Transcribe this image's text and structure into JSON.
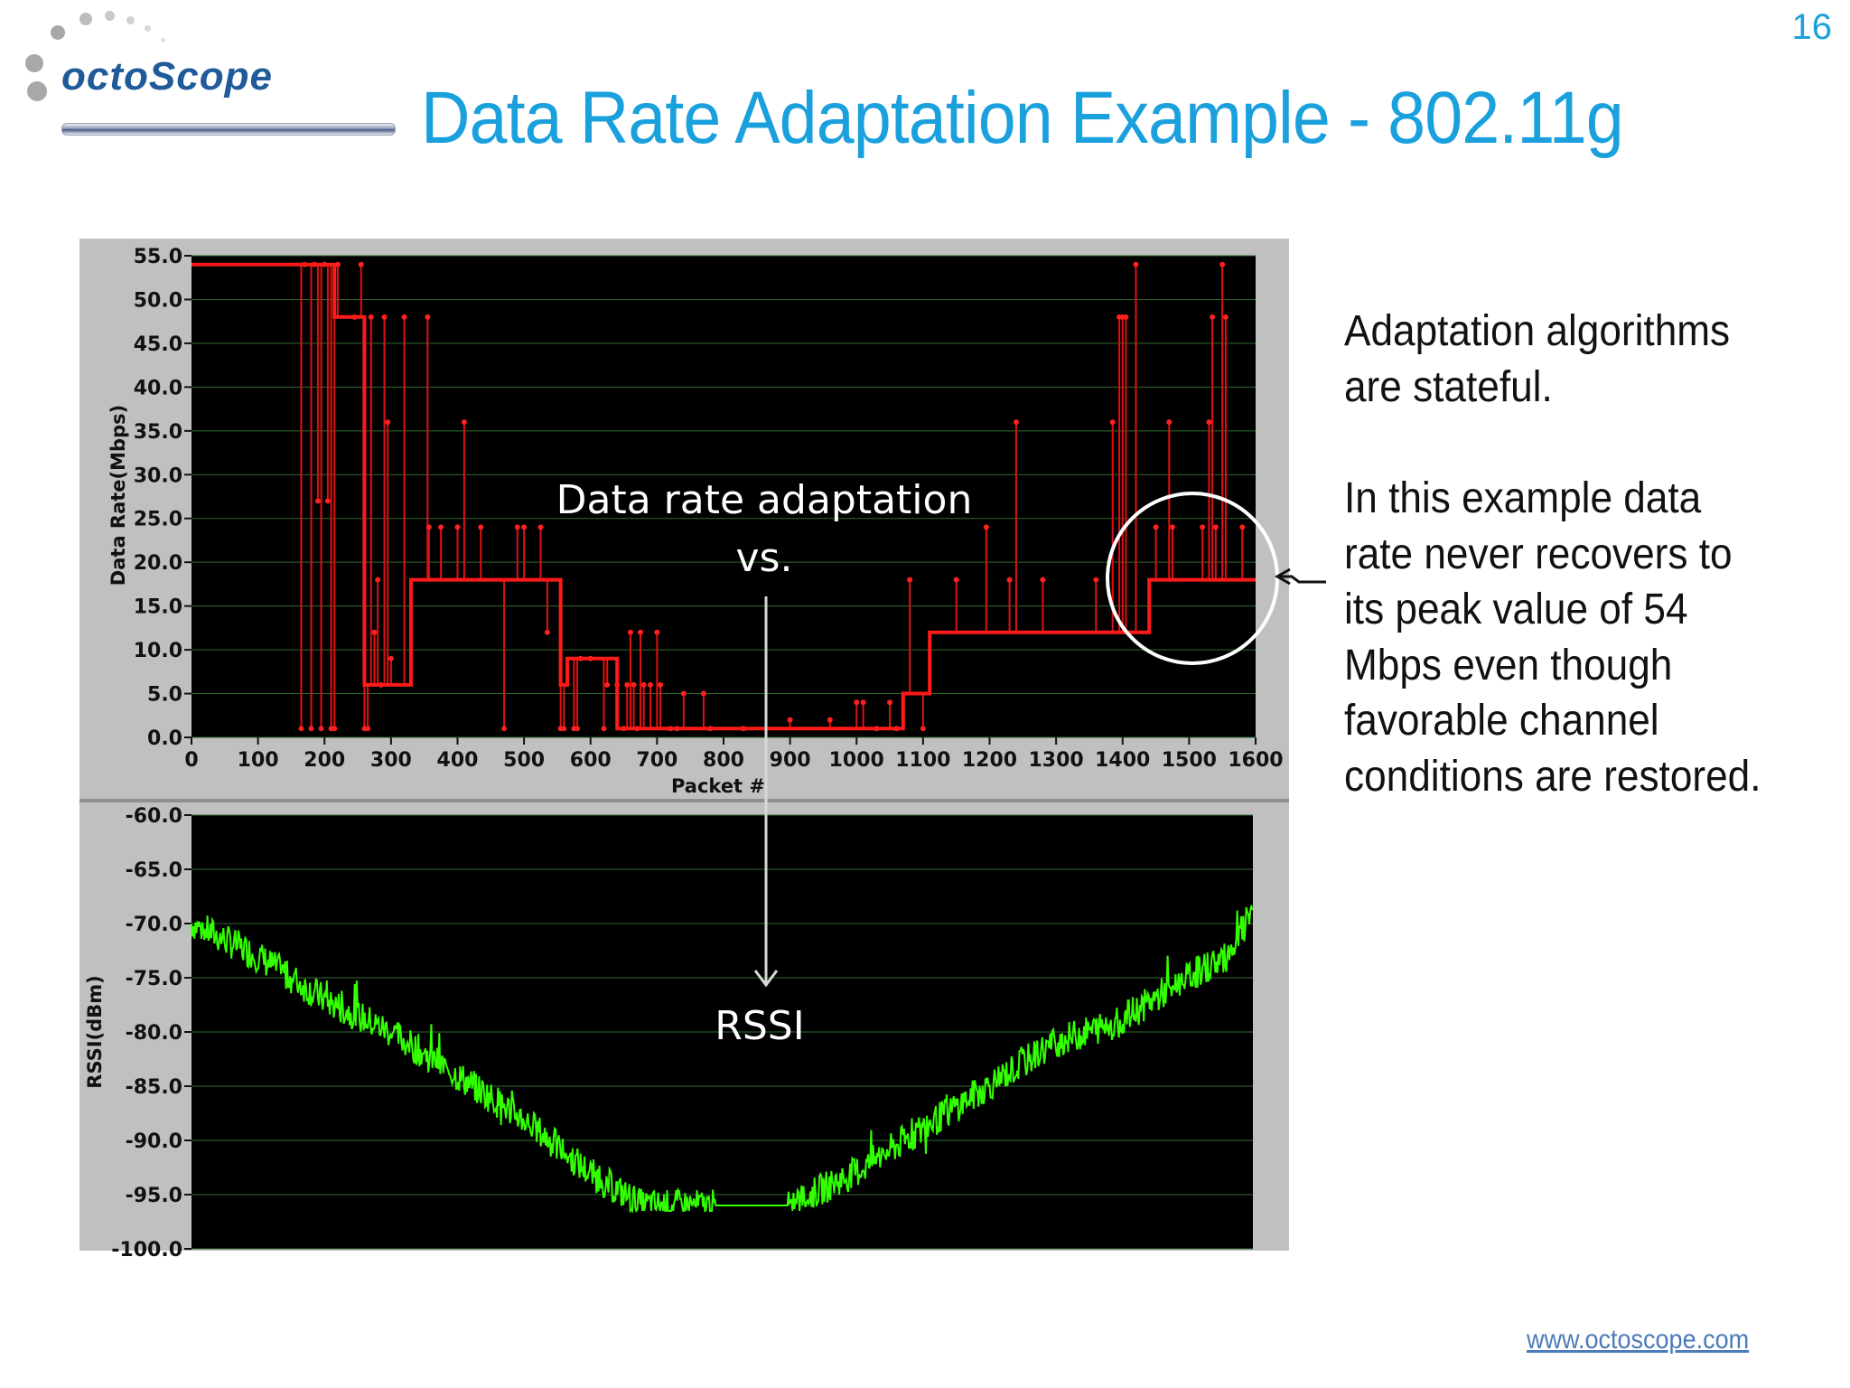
{
  "slide_number": "16",
  "logo": {
    "text": "octoScope"
  },
  "title": "Data Rate Adaptation Example - 802.11g",
  "side_text": {
    "paragraph1": "Adaptation algorithms are stateful.",
    "paragraph2": "In this example data rate never recovers to its peak value of 54 Mbps even though favorable channel conditions are restored."
  },
  "footer": {
    "link": "www.octoscope.com"
  },
  "annotations": {
    "label_line1": "Data  rate adaptation",
    "label_line2": "vs.",
    "label_line3": "RSSI"
  },
  "colors": {
    "title": "#1aa0dc",
    "rate_series": "#ff1a1a",
    "rssi_series": "#33ff00",
    "plot_background": "#000000"
  },
  "chart_data": [
    {
      "type": "line",
      "name": "data-rate-chart",
      "xlabel": "Packet #",
      "ylabel": "Data Rate(Mbps)",
      "xlim": [
        0,
        1600
      ],
      "ylim": [
        0,
        55
      ],
      "xticks": [
        "0",
        "100",
        "200",
        "300",
        "400",
        "500",
        "600",
        "700",
        "800",
        "900",
        "1000",
        "1100",
        "1200",
        "1300",
        "1400",
        "1500",
        "1600"
      ],
      "yticks": [
        "55.0",
        "50.0",
        "45.0",
        "40.0",
        "35.0",
        "30.0",
        "25.0",
        "20.0",
        "15.0",
        "10.0",
        "5.0",
        "0.0"
      ],
      "grid": true,
      "baseline_steps": [
        [
          0,
          54
        ],
        [
          160,
          54
        ],
        [
          215,
          54
        ],
        [
          215,
          48
        ],
        [
          260,
          48
        ],
        [
          260,
          6
        ],
        [
          330,
          6
        ],
        [
          330,
          18
        ],
        [
          555,
          18
        ],
        [
          555,
          6
        ],
        [
          565,
          6
        ],
        [
          565,
          9
        ],
        [
          640,
          9
        ],
        [
          640,
          1
        ],
        [
          700,
          1
        ],
        [
          800,
          1
        ],
        [
          900,
          1
        ],
        [
          1000,
          1
        ],
        [
          1070,
          1
        ],
        [
          1070,
          5
        ],
        [
          1110,
          5
        ],
        [
          1110,
          12
        ],
        [
          1440,
          12
        ],
        [
          1440,
          18
        ],
        [
          1600,
          18
        ]
      ],
      "spikes": [
        [
          165,
          1
        ],
        [
          170,
          54
        ],
        [
          180,
          1
        ],
        [
          185,
          54
        ],
        [
          190,
          27
        ],
        [
          195,
          1
        ],
        [
          200,
          54
        ],
        [
          205,
          27
        ],
        [
          210,
          1
        ],
        [
          215,
          1
        ],
        [
          220,
          54
        ],
        [
          245,
          48
        ],
        [
          255,
          54
        ],
        [
          260,
          1
        ],
        [
          265,
          1
        ],
        [
          270,
          48
        ],
        [
          275,
          12
        ],
        [
          280,
          18
        ],
        [
          285,
          6
        ],
        [
          290,
          48
        ],
        [
          295,
          36
        ],
        [
          300,
          9
        ],
        [
          320,
          48
        ],
        [
          355,
          48
        ],
        [
          357,
          24
        ],
        [
          375,
          24
        ],
        [
          400,
          24
        ],
        [
          410,
          36
        ],
        [
          435,
          24
        ],
        [
          470,
          1
        ],
        [
          490,
          24
        ],
        [
          500,
          24
        ],
        [
          525,
          24
        ],
        [
          535,
          12
        ],
        [
          555,
          1
        ],
        [
          560,
          1
        ],
        [
          575,
          1
        ],
        [
          580,
          1
        ],
        [
          585,
          9
        ],
        [
          600,
          9
        ],
        [
          620,
          1
        ],
        [
          625,
          6
        ],
        [
          640,
          6
        ],
        [
          650,
          1
        ],
        [
          655,
          6
        ],
        [
          660,
          12
        ],
        [
          665,
          6
        ],
        [
          670,
          1
        ],
        [
          675,
          12
        ],
        [
          680,
          6
        ],
        [
          690,
          6
        ],
        [
          700,
          12
        ],
        [
          705,
          6
        ],
        [
          720,
          1
        ],
        [
          730,
          1
        ],
        [
          740,
          5
        ],
        [
          770,
          5
        ],
        [
          780,
          1
        ],
        [
          830,
          1
        ],
        [
          900,
          2
        ],
        [
          960,
          2
        ],
        [
          1000,
          4
        ],
        [
          1010,
          4
        ],
        [
          1030,
          1
        ],
        [
          1050,
          4
        ],
        [
          1060,
          1
        ],
        [
          1080,
          18
        ],
        [
          1100,
          1
        ],
        [
          1150,
          18
        ],
        [
          1195,
          24
        ],
        [
          1230,
          18
        ],
        [
          1240,
          36
        ],
        [
          1280,
          18
        ],
        [
          1360,
          18
        ],
        [
          1385,
          36
        ],
        [
          1395,
          48
        ],
        [
          1400,
          48
        ],
        [
          1405,
          48
        ],
        [
          1420,
          54
        ],
        [
          1450,
          24
        ],
        [
          1470,
          36
        ],
        [
          1475,
          24
        ],
        [
          1520,
          24
        ],
        [
          1530,
          36
        ],
        [
          1535,
          48
        ],
        [
          1540,
          24
        ],
        [
          1550,
          54
        ],
        [
          1555,
          48
        ],
        [
          1580,
          24
        ]
      ]
    },
    {
      "type": "line",
      "name": "rssi-chart",
      "xlabel": "",
      "ylabel": "RSSI(dBm)",
      "xlim": [
        0,
        1600
      ],
      "ylim": [
        -100,
        -60
      ],
      "yticks": [
        "-60.0",
        "-65.0",
        "-70.0",
        "-75.0",
        "-80.0",
        "-85.0",
        "-90.0",
        "-95.0",
        "-100.0"
      ],
      "grid": true,
      "trend": [
        [
          0,
          -70
        ],
        [
          100,
          -73
        ],
        [
          200,
          -77
        ],
        [
          300,
          -80
        ],
        [
          400,
          -84
        ],
        [
          500,
          -88
        ],
        [
          600,
          -93
        ],
        [
          680,
          -96
        ],
        [
          800,
          -96
        ],
        [
          900,
          -96
        ],
        [
          1000,
          -93
        ],
        [
          1100,
          -89
        ],
        [
          1200,
          -85
        ],
        [
          1300,
          -81
        ],
        [
          1400,
          -79
        ],
        [
          1500,
          -75
        ],
        [
          1560,
          -73
        ],
        [
          1600,
          -69
        ]
      ],
      "noise_amplitude_dbm": 1.5
    }
  ]
}
